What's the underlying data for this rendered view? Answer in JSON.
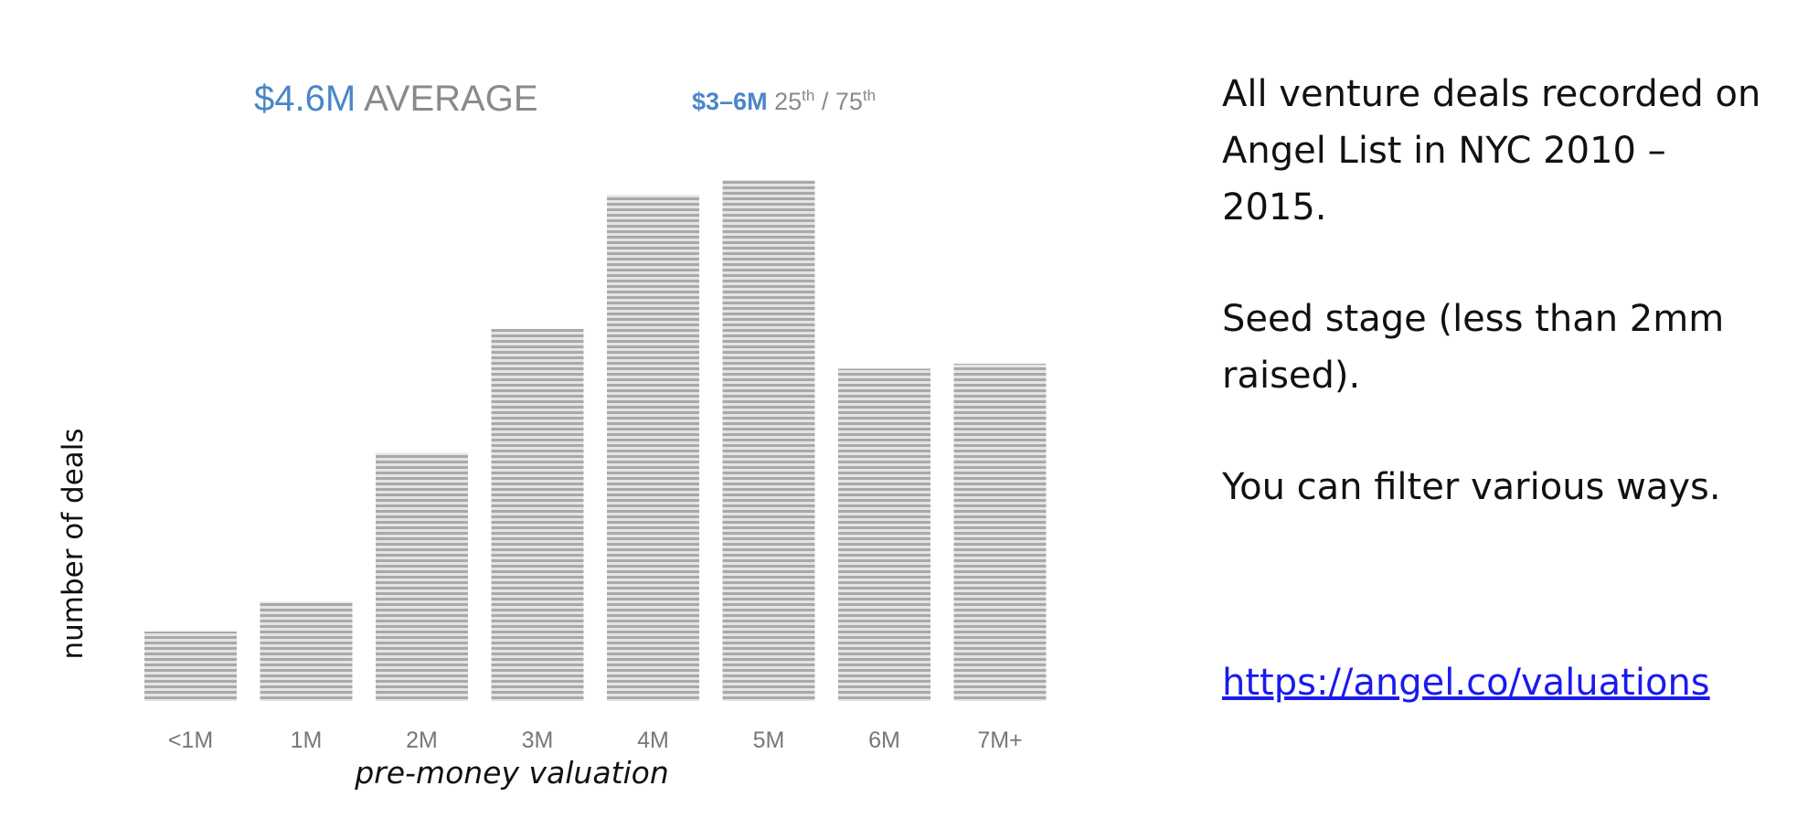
{
  "chart_data": {
    "type": "bar",
    "categories": [
      "<1M",
      "1M",
      "2M",
      "3M",
      "4M",
      "5M",
      "6M",
      "7M+"
    ],
    "values": [
      14,
      20,
      50,
      75,
      102,
      105,
      67,
      68
    ],
    "ylim": [
      0,
      110
    ],
    "xlabel": "pre-money valuation",
    "ylabel": "number of deals",
    "grid": false,
    "bar_color": "#b3b3b3",
    "accent_color": "#4a86c8"
  },
  "stats": {
    "average_value": "$4.6M",
    "average_label": "AVERAGE",
    "range_value": "$3–6M",
    "range_p25": "25",
    "range_sep": " / ",
    "range_p75": "75",
    "range_suffix": "th"
  },
  "notes": {
    "line1": "All venture deals recorded on Angel List in NYC 2010 – 2015.",
    "line2": "Seed stage (less than 2mm raised).",
    "line3": "You can filter various ways.",
    "link": "https://angel.co/valuations"
  }
}
